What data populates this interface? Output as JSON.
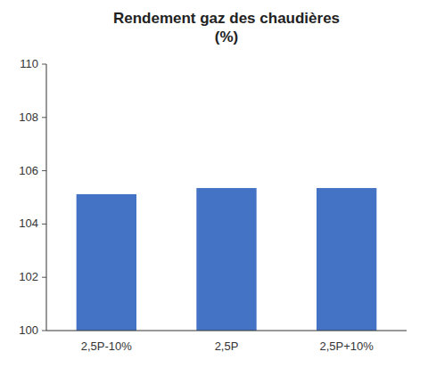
{
  "chart_data": {
    "type": "bar",
    "title": "Rendement gaz des chaudières\n(%)",
    "categories": [
      "2,5P-10%",
      "2,5P",
      "2,5P+10%"
    ],
    "values": [
      105.12,
      105.35,
      105.35
    ],
    "color": "#4472C4",
    "ylim": [
      100,
      110
    ],
    "yticks": [
      100,
      102,
      104,
      106,
      108,
      110
    ],
    "grid": false
  }
}
